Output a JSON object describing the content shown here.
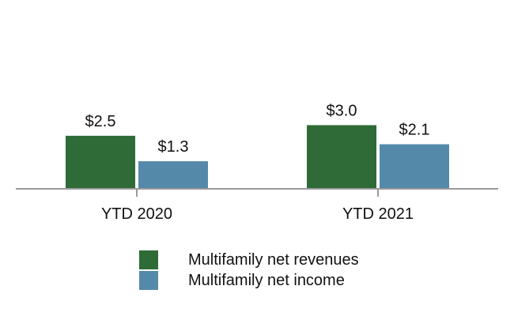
{
  "chart_data": {
    "type": "bar",
    "categories": [
      "YTD 2020",
      "YTD 2021"
    ],
    "series": [
      {
        "name": "Multifamily net revenues",
        "values": [
          2.5,
          3.0
        ],
        "labels": [
          "$2.5",
          "$3.0"
        ],
        "color": "#2e6b37"
      },
      {
        "name": "Multifamily net income",
        "values": [
          1.3,
          2.1
        ],
        "labels": [
          "$1.3",
          "$2.1"
        ],
        "color": "#5589aa"
      }
    ],
    "ylim": [
      0,
      8.9
    ],
    "grid": false,
    "legend": "bottom"
  }
}
